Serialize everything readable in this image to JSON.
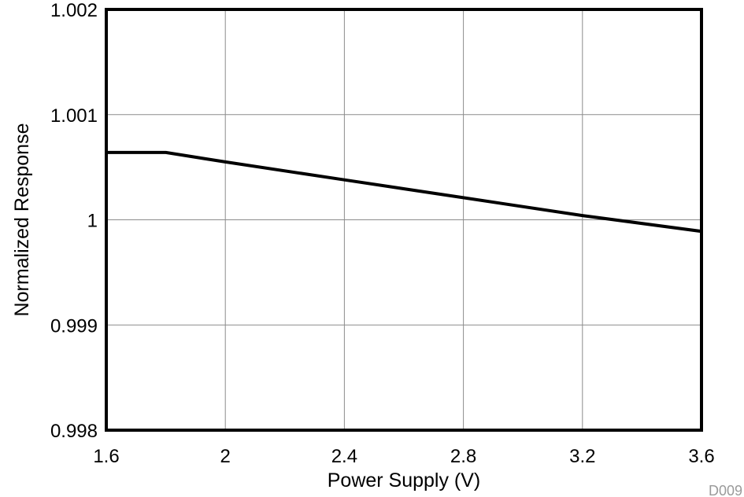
{
  "chart_data": {
    "type": "line",
    "title": "",
    "xlabel": "Power Supply (V)",
    "ylabel": "Normalized Response",
    "xlim": [
      1.6,
      3.6
    ],
    "ylim": [
      0.998,
      1.002
    ],
    "x_ticks": [
      "1.6",
      "2",
      "2.4",
      "2.8",
      "3.2",
      "3.6"
    ],
    "y_ticks": [
      "0.998",
      "0.999",
      "1",
      "1.001",
      "1.002"
    ],
    "grid": true,
    "series": [
      {
        "x": [
          1.6,
          1.8,
          2.0,
          2.4,
          2.8,
          3.2,
          3.6
        ],
        "y": [
          1.00064,
          1.00064,
          1.00055,
          1.00038,
          1.00021,
          1.00004,
          0.99989
        ]
      }
    ],
    "code": "D009"
  }
}
